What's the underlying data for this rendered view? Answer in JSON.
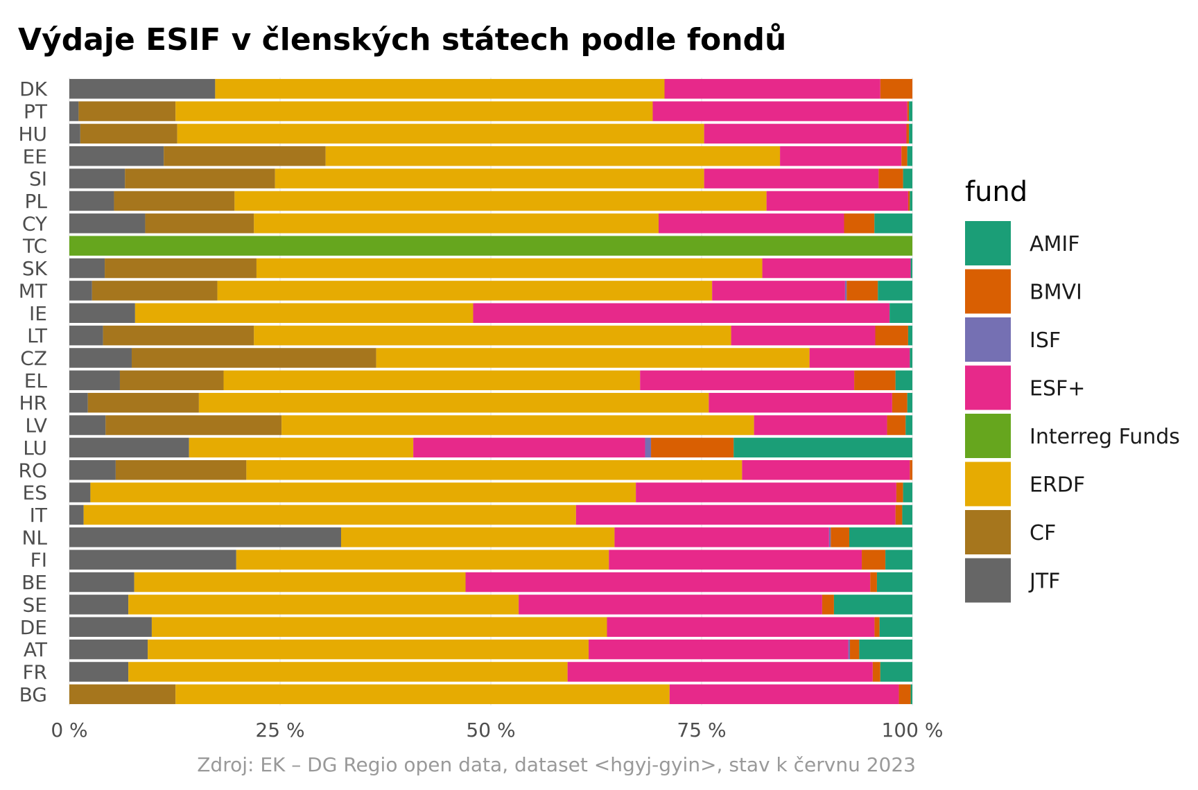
{
  "chart_data": {
    "type": "bar",
    "orientation": "horizontal",
    "stacked": "percent",
    "title": "Výdaje ESIF v členských státech podle fondů",
    "caption": "Zdroj: EK – DG Regio open data, dataset <hgyj-gyin>, stav k červnu 2023",
    "xlabel": "",
    "ylabel": "",
    "xlim": [
      0,
      100
    ],
    "x_ticks": [
      "0 %",
      "25 %",
      "50 %",
      "75 %",
      "100 %"
    ],
    "grid": true,
    "legend_title": "fund",
    "legend_position": "right",
    "stack_order": [
      "JTF",
      "CF",
      "ERDF",
      "Interreg Funds",
      "ESF+",
      "ISF",
      "BMVI",
      "AMIF"
    ],
    "legend_order": [
      "AMIF",
      "BMVI",
      "ISF",
      "ESF+",
      "Interreg Funds",
      "ERDF",
      "CF",
      "JTF"
    ],
    "colors": {
      "AMIF": "#1b9e77",
      "BMVI": "#d95f02",
      "ISF": "#7570b3",
      "ESF+": "#e7298a",
      "Interreg Funds": "#66a61e",
      "ERDF": "#e6ab02",
      "CF": "#a6761d",
      "JTF": "#666666"
    },
    "categories": [
      "DK",
      "PT",
      "HU",
      "EE",
      "SI",
      "PL",
      "CY",
      "TC",
      "SK",
      "MT",
      "IE",
      "LT",
      "CZ",
      "EL",
      "HR",
      "LV",
      "LU",
      "RO",
      "ES",
      "IT",
      "NL",
      "FI",
      "BE",
      "SE",
      "DE",
      "AT",
      "FR",
      "BG"
    ],
    "series": [
      {
        "name": "JTF",
        "values": [
          17.3,
          1.1,
          1.3,
          11.2,
          6.6,
          5.3,
          9.0,
          0,
          4.2,
          2.7,
          7.8,
          4.0,
          7.4,
          6.0,
          2.2,
          4.3,
          14.2,
          5.5,
          2.5,
          1.7,
          32.3,
          19.8,
          7.7,
          7.0,
          9.8,
          9.3,
          7.0,
          0
        ]
      },
      {
        "name": "CF",
        "values": [
          0,
          11.5,
          11.5,
          19.2,
          17.8,
          14.3,
          12.9,
          0,
          18.0,
          14.9,
          0,
          17.9,
          29.0,
          12.3,
          13.2,
          20.9,
          0,
          15.5,
          0,
          0,
          0,
          0,
          0,
          0,
          0,
          0,
          0,
          12.6
        ]
      },
      {
        "name": "ERDF",
        "values": [
          53.3,
          56.6,
          62.5,
          53.9,
          50.9,
          63.1,
          48.0,
          0,
          60.0,
          58.8,
          40.1,
          56.6,
          51.4,
          49.4,
          60.6,
          56.1,
          26.6,
          58.8,
          64.7,
          58.4,
          32.5,
          44.2,
          39.3,
          46.3,
          54.1,
          52.3,
          52.1,
          58.6
        ]
      },
      {
        "name": "Interreg Funds",
        "values": [
          0,
          0,
          0,
          0,
          0,
          0,
          0,
          100,
          0,
          0,
          0,
          0,
          0,
          0,
          0,
          0,
          0,
          0,
          0,
          0,
          0,
          0,
          0,
          0,
          0,
          0,
          0,
          0
        ]
      },
      {
        "name": "ESF+",
        "values": [
          25.6,
          30.2,
          24.0,
          14.4,
          20.7,
          16.8,
          22.0,
          0,
          17.6,
          15.8,
          49.4,
          17.1,
          11.9,
          25.4,
          21.8,
          15.8,
          27.5,
          19.9,
          30.9,
          37.9,
          25.5,
          30.0,
          48.0,
          36.0,
          31.8,
          30.8,
          36.2,
          27.2
        ]
      },
      {
        "name": "ISF",
        "values": [
          0,
          0,
          0,
          0,
          0,
          0,
          0,
          0,
          0,
          0.2,
          0,
          0,
          0,
          0,
          0,
          0,
          0.7,
          0,
          0,
          0,
          0.2,
          0,
          0,
          0,
          0,
          0.2,
          0,
          0
        ]
      },
      {
        "name": "BMVI",
        "values": [
          3.8,
          0.2,
          0.3,
          0.7,
          2.9,
          0.2,
          3.6,
          0,
          0,
          3.7,
          0,
          3.9,
          0,
          4.9,
          1.8,
          2.2,
          9.8,
          0.3,
          0.8,
          0.8,
          2.2,
          2.8,
          0.8,
          1.4,
          0.6,
          1.1,
          0.9,
          1.4
        ]
      },
      {
        "name": "AMIF",
        "values": [
          0,
          0.4,
          0.4,
          0.6,
          1.1,
          0.3,
          4.5,
          0,
          0.2,
          4.1,
          2.7,
          0.5,
          0.3,
          2.0,
          0.6,
          0.8,
          21.2,
          0,
          1.1,
          1.2,
          7.5,
          3.2,
          4.2,
          9.3,
          3.9,
          6.3,
          3.8,
          0.2
        ]
      }
    ]
  }
}
